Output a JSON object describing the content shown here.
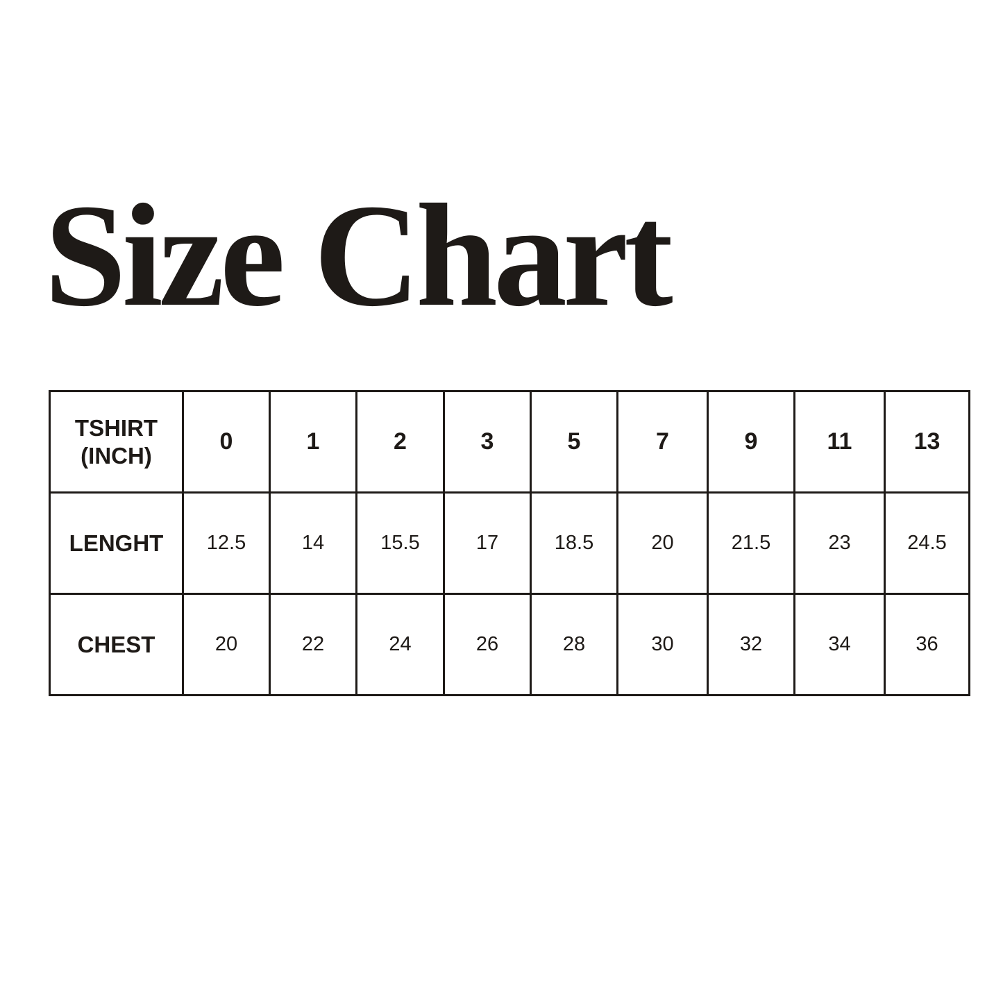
{
  "title": "Size Chart",
  "table": {
    "header_label": [
      "TSHIRT",
      "(INCH)"
    ],
    "sizes": [
      "0",
      "1",
      "2",
      "3",
      "5",
      "7",
      "9",
      "11",
      "13"
    ],
    "rows": [
      {
        "label": "LENGHT",
        "values": [
          "12.5",
          "14",
          "15.5",
          "17",
          "18.5",
          "20",
          "21.5",
          "23",
          "24.5"
        ]
      },
      {
        "label": "CHEST",
        "values": [
          "20",
          "22",
          "24",
          "26",
          "28",
          "30",
          "32",
          "34",
          "36"
        ]
      }
    ]
  }
}
